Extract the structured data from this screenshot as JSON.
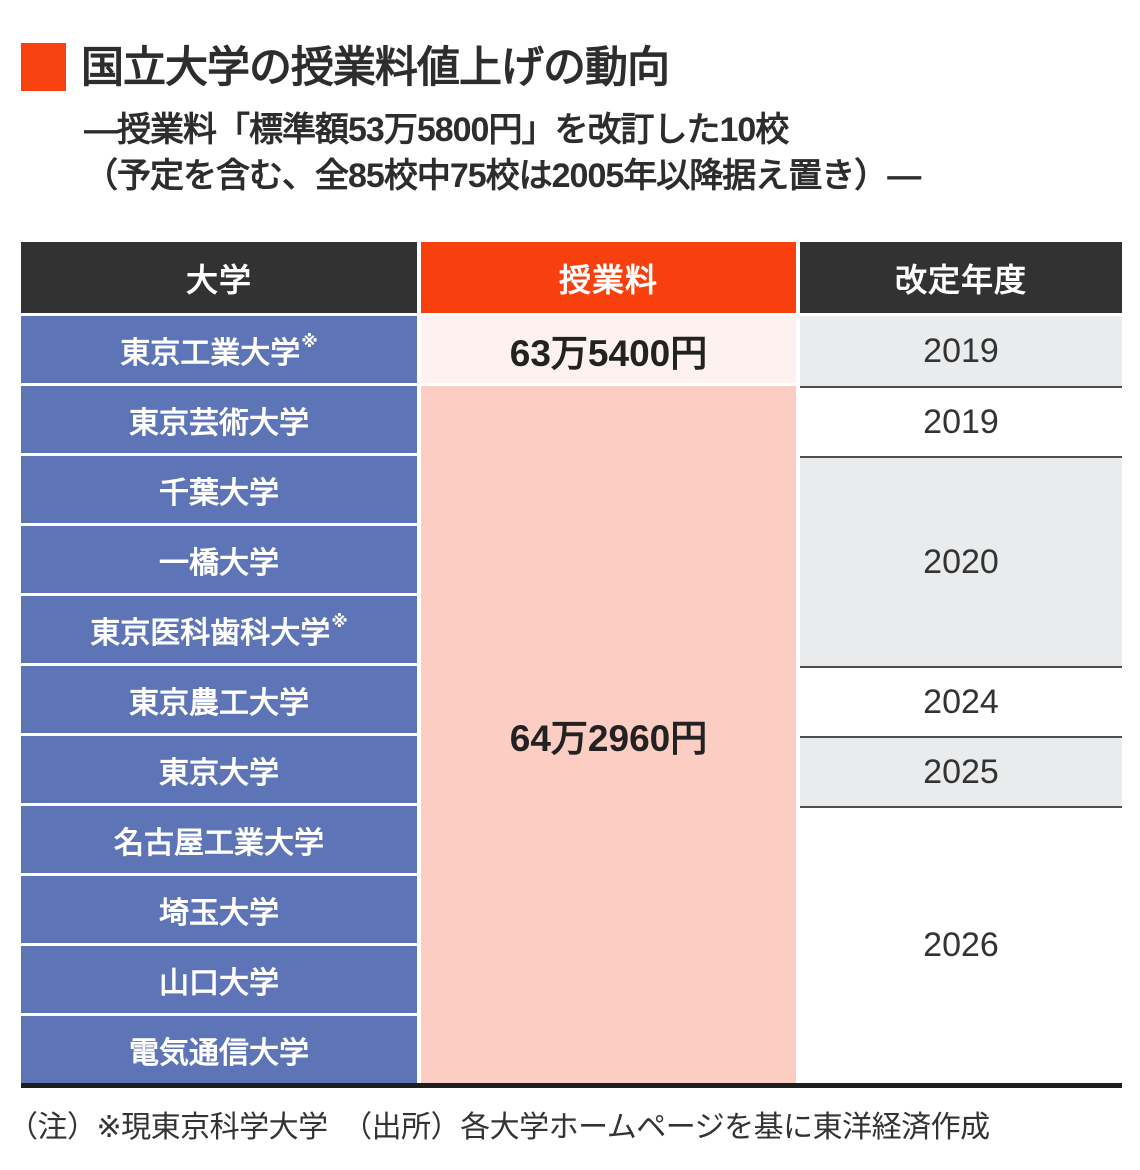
{
  "title": "国立大学の授業料値上げの動向",
  "subtitle": {
    "line1": "—授業料「標準額53万5800円」を改訂した10校",
    "line2": "（予定を含む、全85校中75校は2005年以降据え置き）—"
  },
  "table": {
    "headers": {
      "university": "大学",
      "tuition": "授業料",
      "year": "改定年度"
    },
    "universities": [
      {
        "name": "東京工業大学",
        "note": "※"
      },
      {
        "name": "東京芸術大学",
        "note": ""
      },
      {
        "name": "千葉大学",
        "note": ""
      },
      {
        "name": "一橋大学",
        "note": ""
      },
      {
        "name": "東京医科歯科大学",
        "note": "※"
      },
      {
        "name": "東京農工大学",
        "note": ""
      },
      {
        "name": "東京大学",
        "note": ""
      },
      {
        "name": "名古屋工業大学",
        "note": ""
      },
      {
        "name": "埼玉大学",
        "note": ""
      },
      {
        "name": "山口大学",
        "note": ""
      },
      {
        "name": "電気通信大学",
        "note": ""
      }
    ],
    "tuition": {
      "first_row_value": "63万5400円",
      "merged_value": "64万2960円"
    },
    "years": [
      {
        "label": "2019",
        "rows": 1,
        "shaded": true
      },
      {
        "label": "2019",
        "rows": 1,
        "shaded": false
      },
      {
        "label": "2020",
        "rows": 3,
        "shaded": true
      },
      {
        "label": "2024",
        "rows": 1,
        "shaded": false
      },
      {
        "label": "2025",
        "rows": 1,
        "shaded": true
      },
      {
        "label": "2026",
        "rows": 4,
        "shaded": false
      }
    ]
  },
  "footer": "（注）※現東京科学大学　（出所）各大学ホームページを基に東洋経済作成",
  "colors": {
    "accent_orange": "#f8400e",
    "title_square_orange": "#f7410e",
    "header_dark": "#323232",
    "university_blue": "#5d74b6",
    "tuition_pale_pink": "#fdf2ef",
    "tuition_pink": "#fccdc3",
    "year_gray": "#e9ebed",
    "bottom_rule": "#1e1e1e"
  },
  "chart_data": {
    "type": "table",
    "title": "国立大学の授業料値上げの動向",
    "subtitle": "授業料「標準額53万5800円」を改訂した10校（予定を含む、全85校中75校は2005年以降据え置き）",
    "columns": [
      "大学",
      "授業料",
      "改定年度"
    ],
    "rows": [
      [
        "東京工業大学※",
        "63万5400円",
        "2019"
      ],
      [
        "東京芸術大学",
        "64万2960円",
        "2019"
      ],
      [
        "千葉大学",
        "64万2960円",
        "2020"
      ],
      [
        "一橋大学",
        "64万2960円",
        "2020"
      ],
      [
        "東京医科歯科大学※",
        "64万2960円",
        "2020"
      ],
      [
        "東京農工大学",
        "64万2960円",
        "2024"
      ],
      [
        "東京大学",
        "64万2960円",
        "2025"
      ],
      [
        "名古屋工業大学",
        "64万2960円",
        "2026"
      ],
      [
        "埼玉大学",
        "64万2960円",
        "2026"
      ],
      [
        "山口大学",
        "64万2960円",
        "2026"
      ],
      [
        "電気通信大学",
        "64万2960円",
        "2026"
      ]
    ],
    "notes": "授業料64万2960円のセルは東京芸術大学〜電気通信大学の10行で結合。改定年度は2020が3行結合、2026が4行結合。"
  }
}
